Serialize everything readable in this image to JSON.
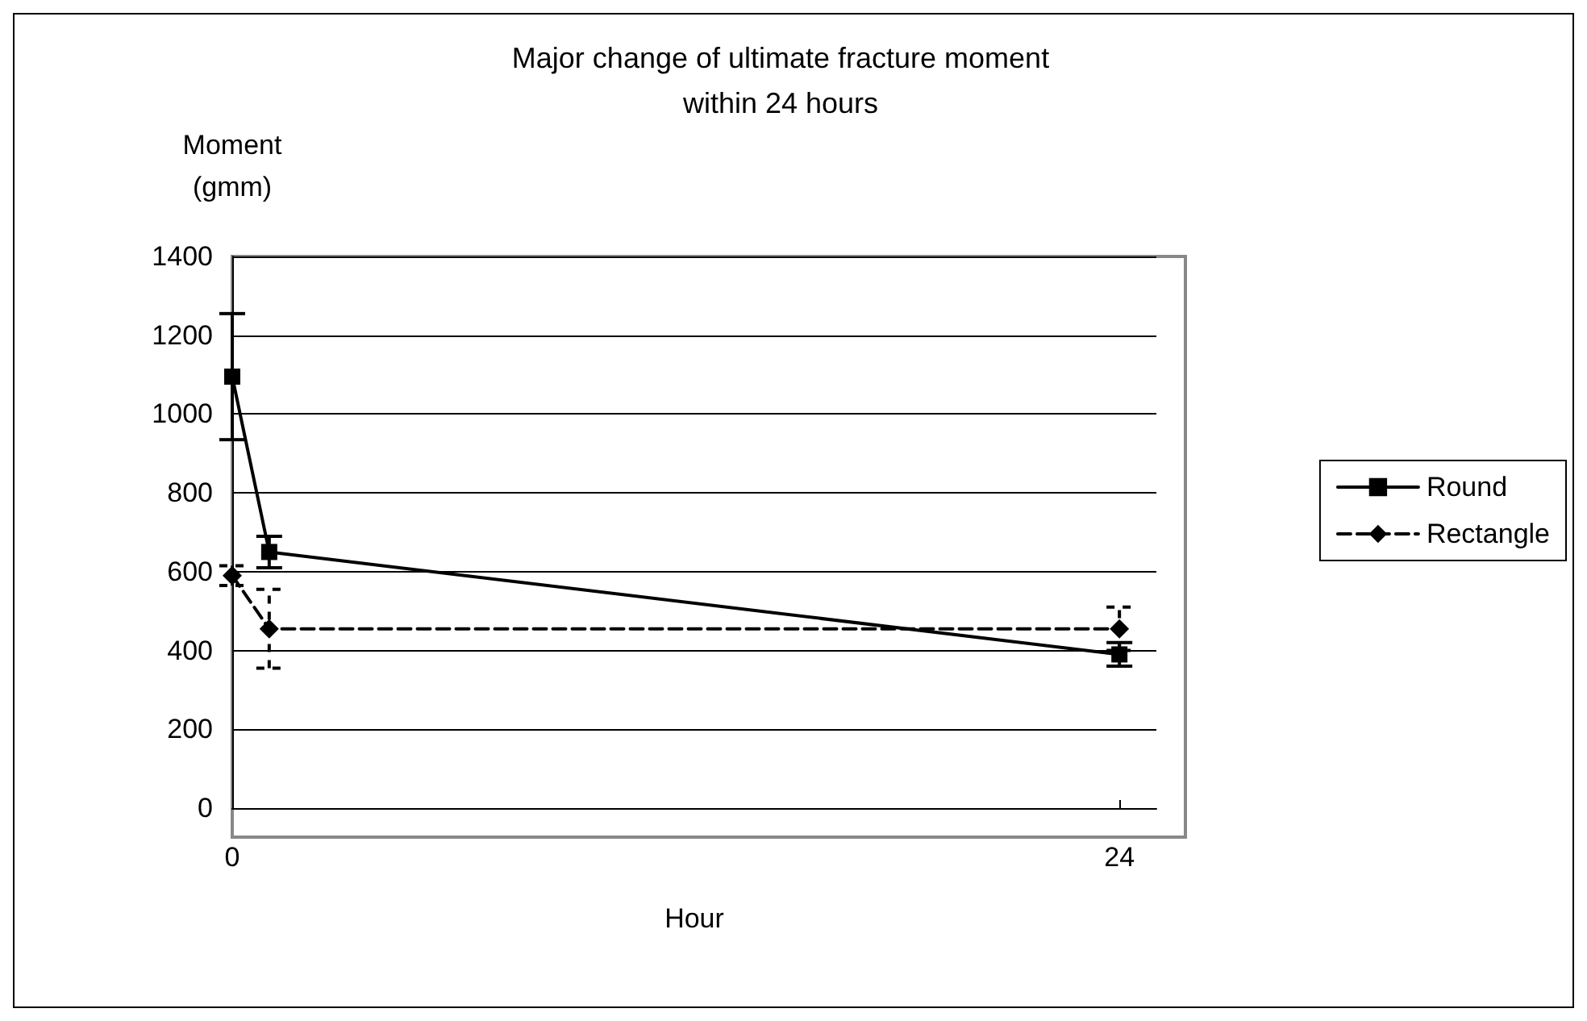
{
  "chart_data": {
    "type": "line",
    "title": "Major change of ultimate fracture moment\nwithin 24 hours",
    "xlabel": "Hour",
    "ylabel": "Moment\n(gmm)",
    "x": [
      0,
      1,
      24
    ],
    "series": [
      {
        "name": "Round",
        "color": "#000000",
        "values": [
          1095,
          650,
          390
        ],
        "errors": [
          160,
          40,
          30
        ],
        "marker": "square",
        "line_style": "solid"
      },
      {
        "name": "Rectangle",
        "color": "#000000",
        "values": [
          590,
          455,
          455
        ],
        "errors": [
          25,
          100,
          55
        ],
        "marker": "diamond",
        "line_style": "dashed"
      }
    ],
    "xlim": [
      0,
      25
    ],
    "xticks": [
      0,
      24
    ],
    "ylim": [
      0,
      1400
    ],
    "yticks": [
      0,
      200,
      400,
      600,
      800,
      1000,
      1200,
      1400
    ],
    "grid": "y",
    "legend": "right"
  }
}
